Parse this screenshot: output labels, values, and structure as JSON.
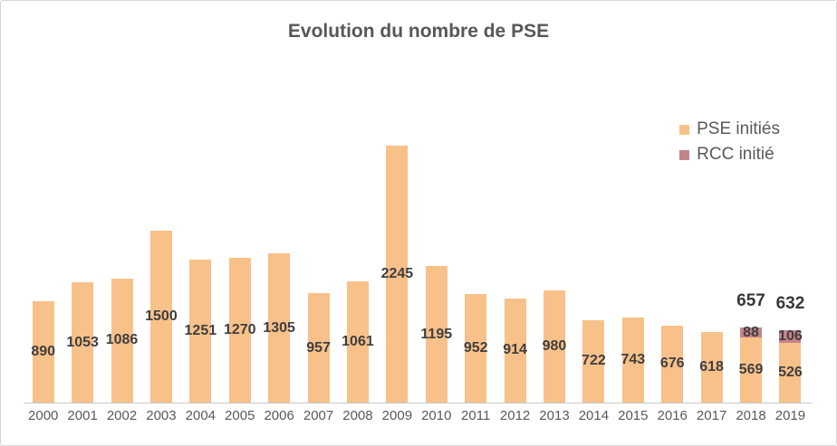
{
  "window": {
    "title": "Evolution du nombre de PSE"
  },
  "chart_data": {
    "type": "bar",
    "stacked": true,
    "title": "Evolution du nombre de PSE",
    "xlabel": "",
    "ylabel": "",
    "ylim": [
      0,
      2500
    ],
    "grid": false,
    "legend_position": "right",
    "categories": [
      "2000",
      "2001",
      "2002",
      "2003",
      "2004",
      "2005",
      "2006",
      "2007",
      "2008",
      "2009",
      "2010",
      "2011",
      "2012",
      "2013",
      "2014",
      "2015",
      "2016",
      "2017",
      "2018",
      "2019"
    ],
    "series": [
      {
        "name": "PSE initiés",
        "color": "#f8c189",
        "values": [
          890,
          1053,
          1086,
          1500,
          1251,
          1270,
          1305,
          957,
          1061,
          2245,
          1195,
          952,
          914,
          980,
          722,
          743,
          676,
          618,
          569,
          526
        ]
      },
      {
        "name": "RCC initié",
        "color": "#c5838a",
        "values": [
          null,
          null,
          null,
          null,
          null,
          null,
          null,
          null,
          null,
          null,
          null,
          null,
          null,
          null,
          null,
          null,
          null,
          null,
          88,
          106
        ]
      }
    ],
    "totals": [
      null,
      null,
      null,
      null,
      null,
      null,
      null,
      null,
      null,
      null,
      null,
      null,
      null,
      null,
      null,
      null,
      null,
      null,
      657,
      632
    ],
    "colors": {
      "title_text": "#575757",
      "data_label_text": "#3f3f3f",
      "axis_label_text": "#595959",
      "axis_line": "#c9c9c9",
      "frame_border": "#d6d6d6",
      "background": "#ffffff"
    }
  }
}
